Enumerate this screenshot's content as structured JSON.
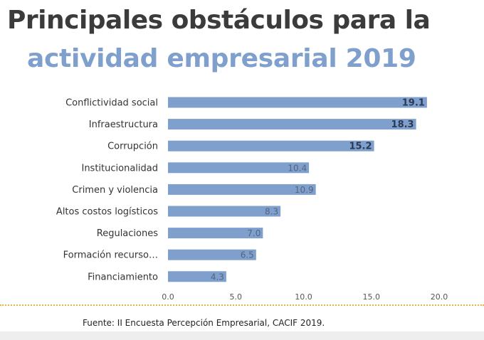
{
  "title": {
    "line1": "Principales obstáculos para la",
    "line2": "actividad empresarial 2019"
  },
  "source": "Fuente: II Encuesta Percepción Empresarial, CACIF 2019.",
  "colors": {
    "bar": "#7f9fcd",
    "title_dark": "#3b3b3b",
    "title_accent": "#7f9fcd",
    "rule": "#e8b44a"
  },
  "chart_data": {
    "type": "bar",
    "orientation": "horizontal",
    "categories": [
      "Conflictividad social",
      "Infraestructura",
      "Corrupción",
      "Institucionalidad",
      "Crimen y violencia",
      "Altos costos logísticos",
      "Regulaciones",
      "Formación recurso…",
      "Financiamiento"
    ],
    "values": [
      19.1,
      18.3,
      15.2,
      10.4,
      10.9,
      8.3,
      7.0,
      6.5,
      4.3
    ],
    "value_labels": [
      "19.1",
      "18.3",
      "15.2",
      "10.4",
      "10.9",
      "8.3",
      "7.0",
      "6.5",
      "4.3"
    ],
    "highlighted_labels": [
      true,
      true,
      true,
      false,
      false,
      false,
      false,
      false,
      false
    ],
    "xlim": [
      0,
      20
    ],
    "xticks": [
      "0.0",
      "5.0",
      "10.0",
      "15.0",
      "20.0"
    ],
    "grid": false,
    "legend": "none",
    "title": "",
    "xlabel": "",
    "ylabel": ""
  }
}
